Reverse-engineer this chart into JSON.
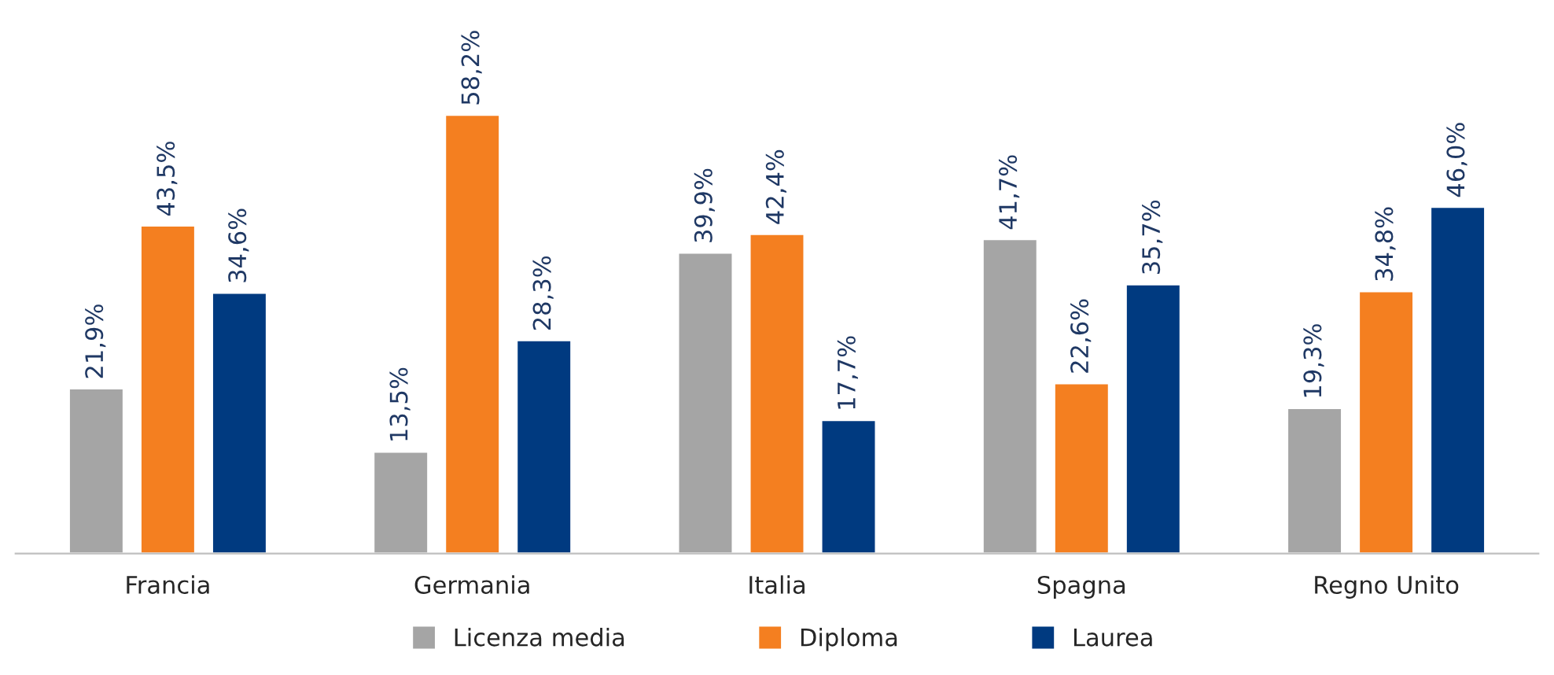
{
  "chart_data": {
    "type": "bar",
    "categories": [
      "Francia",
      "Germania",
      "Italia",
      "Spagna",
      "Regno Unito"
    ],
    "series": [
      {
        "name": "Licenza media",
        "color": "#a5a5a5",
        "values": [
          21.9,
          13.5,
          39.9,
          41.7,
          19.3
        ],
        "value_labels": [
          "21,9%",
          "13,5%",
          "39,9%",
          "41,7%",
          "19,3%"
        ]
      },
      {
        "name": "Diploma",
        "color": "#f47f20",
        "values": [
          43.5,
          58.2,
          42.4,
          22.6,
          34.8
        ],
        "value_labels": [
          "43,5%",
          "58,2%",
          "42,4%",
          "22,6%",
          "34,8%"
        ]
      },
      {
        "name": "Laurea",
        "color": "#003a80",
        "values": [
          34.6,
          28.3,
          17.7,
          35.7,
          46.0
        ],
        "value_labels": [
          "34,6%",
          "28,3%",
          "17,7%",
          "35,7%",
          "46,0%"
        ]
      }
    ],
    "ylim": [
      0,
      58.2
    ],
    "tick_labels": "x",
    "legend": "bottom",
    "marker": "square",
    "grid": false
  }
}
